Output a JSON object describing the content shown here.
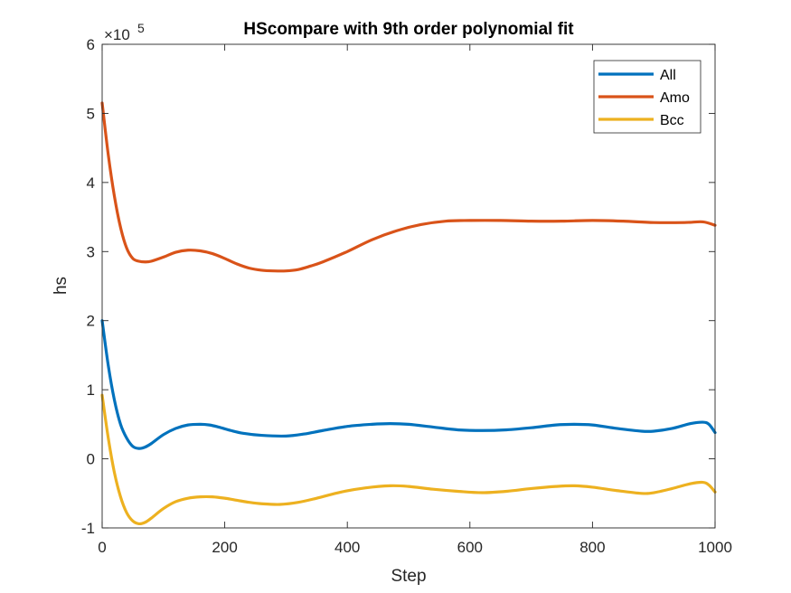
{
  "chart_data": {
    "type": "line",
    "title": "HScompare with 9th order polynomial fit",
    "xlabel": "Step",
    "ylabel": "hs",
    "xlim": [
      0,
      1000
    ],
    "ylim": [
      -1,
      6
    ],
    "y_exponent": "5",
    "y_exponent_base": "×10",
    "xticks": [
      "0",
      "200",
      "400",
      "600",
      "800",
      "1000"
    ],
    "yticks": [
      "-1",
      "0",
      "1",
      "2",
      "3",
      "4",
      "5",
      "6"
    ],
    "grid": false,
    "legend_position": "top-right",
    "series": [
      {
        "name": "All",
        "color": "#0072BD",
        "x": [
          0,
          10,
          20,
          30,
          40,
          50,
          60,
          70,
          80,
          100,
          120,
          140,
          160,
          175,
          190,
          210,
          230,
          260,
          300,
          330,
          360,
          400,
          440,
          470,
          500,
          540,
          580,
          620,
          660,
          700,
          740,
          770,
          800,
          840,
          880,
          900,
          930,
          960,
          980,
          990,
          1000
        ],
        "y": [
          2.0,
          1.35,
          0.85,
          0.5,
          0.3,
          0.18,
          0.15,
          0.17,
          0.22,
          0.35,
          0.44,
          0.49,
          0.5,
          0.49,
          0.46,
          0.41,
          0.37,
          0.34,
          0.33,
          0.36,
          0.41,
          0.47,
          0.5,
          0.51,
          0.5,
          0.46,
          0.42,
          0.41,
          0.42,
          0.45,
          0.49,
          0.5,
          0.49,
          0.44,
          0.4,
          0.4,
          0.44,
          0.51,
          0.53,
          0.5,
          0.38
        ]
      },
      {
        "name": "Amo",
        "color": "#D95319",
        "x": [
          0,
          10,
          20,
          30,
          40,
          50,
          60,
          70,
          80,
          100,
          120,
          140,
          160,
          180,
          200,
          220,
          240,
          260,
          280,
          300,
          320,
          340,
          360,
          400,
          440,
          480,
          520,
          560,
          600,
          650,
          700,
          750,
          800,
          850,
          900,
          950,
          980,
          1000
        ],
        "y": [
          5.15,
          4.4,
          3.8,
          3.35,
          3.05,
          2.9,
          2.86,
          2.85,
          2.86,
          2.92,
          2.99,
          3.02,
          3.01,
          2.97,
          2.9,
          2.82,
          2.76,
          2.73,
          2.72,
          2.72,
          2.74,
          2.79,
          2.85,
          3.0,
          3.17,
          3.3,
          3.39,
          3.44,
          3.45,
          3.45,
          3.44,
          3.44,
          3.45,
          3.44,
          3.42,
          3.42,
          3.43,
          3.38
        ]
      },
      {
        "name": "Bcc",
        "color": "#EDB120",
        "x": [
          0,
          10,
          20,
          30,
          40,
          50,
          60,
          70,
          80,
          100,
          120,
          140,
          160,
          180,
          200,
          220,
          240,
          260,
          290,
          320,
          350,
          390,
          430,
          470,
          500,
          540,
          580,
          620,
          660,
          700,
          740,
          770,
          800,
          840,
          880,
          900,
          930,
          960,
          980,
          990,
          1000
        ],
        "y": [
          0.92,
          0.3,
          -0.2,
          -0.55,
          -0.78,
          -0.9,
          -0.94,
          -0.92,
          -0.86,
          -0.72,
          -0.62,
          -0.57,
          -0.55,
          -0.55,
          -0.57,
          -0.6,
          -0.63,
          -0.65,
          -0.66,
          -0.63,
          -0.57,
          -0.48,
          -0.42,
          -0.39,
          -0.4,
          -0.44,
          -0.47,
          -0.49,
          -0.47,
          -0.43,
          -0.4,
          -0.39,
          -0.41,
          -0.46,
          -0.5,
          -0.49,
          -0.43,
          -0.36,
          -0.34,
          -0.38,
          -0.48
        ]
      }
    ]
  }
}
